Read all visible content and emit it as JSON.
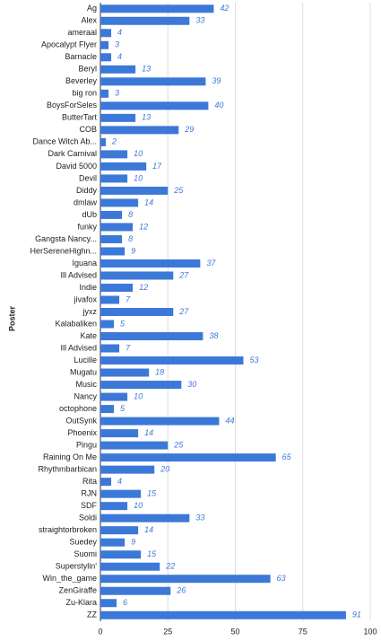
{
  "chart_data": {
    "type": "bar",
    "orientation": "horizontal",
    "y_label": "Poster",
    "categories": [
      "Ag",
      "Alex",
      "ameraal",
      "Apocalypt Flyer",
      "Barnacle",
      "Beryl",
      "Beverley",
      "big ron",
      "BoysForSeles",
      "ButterTart",
      "COB",
      "Dance Witch Ab...",
      "Dark Carnival",
      "David 5000",
      "Devil",
      "Diddy",
      "dmlaw",
      "dUb",
      "funky",
      "Gangsta Nancy...",
      "HerSereneHighn...",
      "Iguana",
      "Ill Advised",
      "Indie",
      "jivafox",
      "jyxz",
      "Kalabaliken",
      "Kate",
      "Ill Advised",
      "Lucille",
      "Mugatu",
      "Music",
      "Nancy",
      "octophone",
      "OutSynk",
      "Phoenix",
      "Pingu",
      "Raining On Me",
      "Rhythmbarbican",
      "Rita",
      "RJN",
      "SDF",
      "Soldi",
      "straightorbroken",
      "Suedey",
      "Suomi",
      "Superstylin'",
      "Win_the_game",
      "ZenGiraffe",
      "Zu-Klara",
      "ZZ"
    ],
    "values": [
      42,
      33,
      4,
      3,
      4,
      13,
      39,
      3,
      40,
      13,
      29,
      2,
      10,
      17,
      10,
      25,
      14,
      8,
      12,
      8,
      9,
      37,
      27,
      12,
      7,
      27,
      5,
      38,
      7,
      53,
      18,
      30,
      10,
      5,
      44,
      14,
      25,
      65,
      20,
      4,
      15,
      10,
      33,
      14,
      9,
      15,
      22,
      63,
      26,
      6,
      91
    ],
    "color": "#3c78d8",
    "label_color": "#3c78d8",
    "xlim": [
      0,
      100
    ],
    "xticks": [
      0,
      25,
      50,
      75,
      100
    ],
    "grid": true
  }
}
